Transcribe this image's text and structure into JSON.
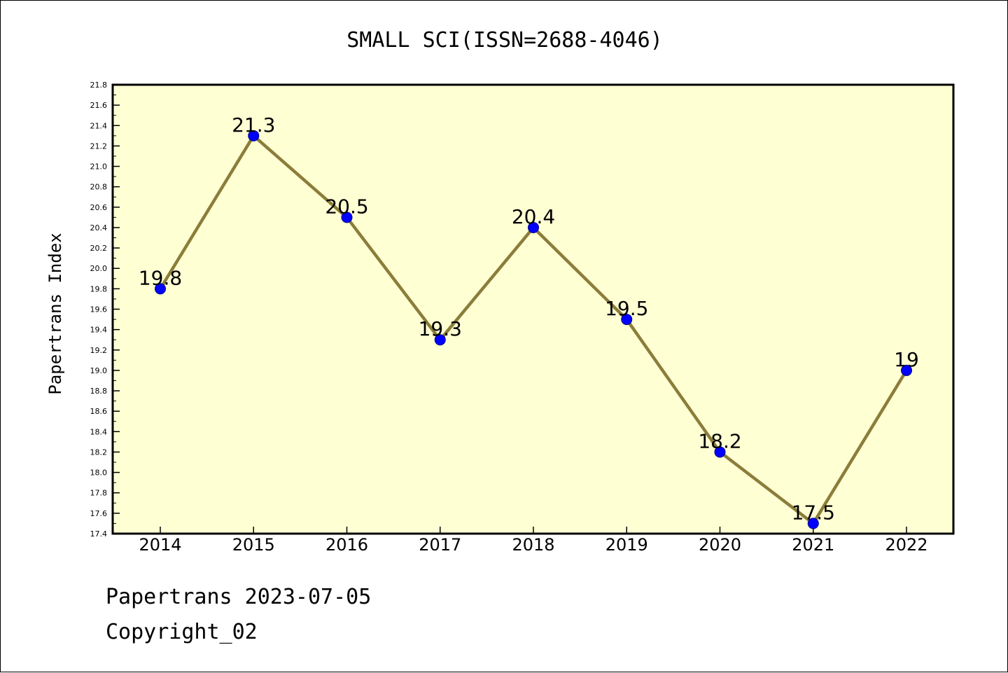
{
  "chart_data": {
    "type": "line",
    "title": "SMALL SCI(ISSN=2688-4046)",
    "xlabel": "",
    "ylabel": "Papertrans Index",
    "categories": [
      "2014",
      "2015",
      "2016",
      "2017",
      "2018",
      "2019",
      "2020",
      "2021",
      "2022"
    ],
    "series": [
      {
        "values": [
          19.8,
          21.3,
          20.5,
          19.3,
          20.4,
          19.5,
          18.2,
          17.5,
          19.0
        ]
      }
    ],
    "data_labels": [
      "19.8",
      "21.3",
      "20.5",
      "19.3",
      "20.4",
      "19.5",
      "18.2",
      "17.5",
      "19"
    ],
    "ylim": [
      17.4,
      21.8
    ],
    "y_ticks": [
      "17.4",
      "17.6",
      "17.8",
      "18.0",
      "18.2",
      "18.4",
      "18.6",
      "18.8",
      "19.0",
      "19.2",
      "19.4",
      "19.6",
      "19.8",
      "20.0",
      "20.2",
      "20.4",
      "20.6",
      "20.8",
      "21.0",
      "21.2",
      "21.4",
      "21.6",
      "21.8"
    ],
    "grid": false,
    "legend": "none",
    "colors": {
      "plot_background": "#ffffd4",
      "line": "#8b7d3a",
      "marker": "#0000ff",
      "marker_edge": "#00008b"
    }
  },
  "footer": {
    "date_line": "Papertrans 2023-07-05",
    "copyright": "Copyright_02"
  }
}
